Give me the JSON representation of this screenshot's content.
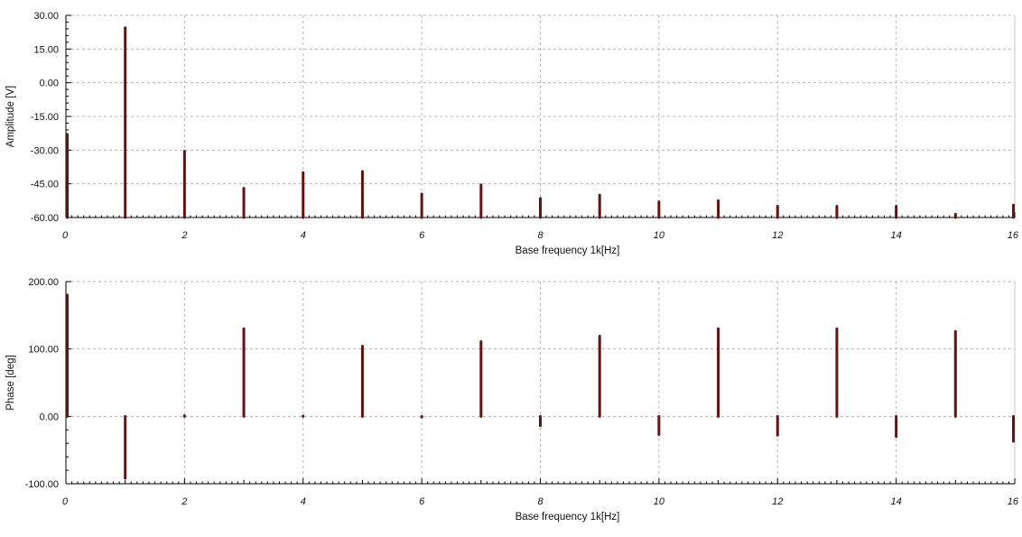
{
  "chart_data": [
    {
      "type": "bar",
      "xlabel": "Base frequency 1k[Hz]",
      "ylabel": "Amplitude [V]",
      "xlim": [
        0,
        16
      ],
      "ylim": [
        -60,
        30
      ],
      "x_ticks": [
        0,
        2,
        4,
        6,
        8,
        10,
        12,
        14,
        16
      ],
      "x_tick_labels": [
        "0",
        "2",
        "4",
        "6",
        "8",
        "10",
        "12",
        "14",
        "16"
      ],
      "y_ticks": [
        30,
        15,
        0,
        -15,
        -30,
        -45,
        -60
      ],
      "y_tick_labels": [
        "30.00",
        "15.00",
        "0.00",
        "-15.00",
        "-30.00",
        "-45.00",
        "-60.00"
      ],
      "grid": true,
      "bar_color": "#6b0f0f",
      "baseline": -60,
      "x": [
        0,
        1,
        2,
        3,
        4,
        5,
        6,
        7,
        8,
        9,
        10,
        11,
        12,
        13,
        14,
        15,
        16
      ],
      "values": [
        -23,
        24.5,
        -30.5,
        -47,
        -40,
        -39.5,
        -49.5,
        -45.5,
        -51.5,
        -50,
        -53,
        -52.5,
        -55,
        -55,
        -55,
        -58.5,
        -54.5
      ]
    },
    {
      "type": "bar",
      "xlabel": "Base frequency 1k[Hz]",
      "ylabel": "Phase [deg]",
      "xlim": [
        0,
        16
      ],
      "ylim": [
        -100,
        200
      ],
      "x_ticks": [
        0,
        2,
        4,
        6,
        8,
        10,
        12,
        14,
        16
      ],
      "x_tick_labels": [
        "0",
        "2",
        "4",
        "6",
        "8",
        "10",
        "12",
        "14",
        "16"
      ],
      "y_ticks": [
        200,
        100,
        0,
        -100
      ],
      "y_tick_labels": [
        "200.00",
        "100.00",
        "0.00",
        "-100.00"
      ],
      "grid": true,
      "bar_color": "#6b0f0f",
      "baseline": 0,
      "x": [
        0,
        1,
        2,
        3,
        4,
        5,
        6,
        7,
        8,
        9,
        10,
        11,
        12,
        13,
        14,
        15,
        16
      ],
      "values": [
        180,
        -92,
        1,
        130,
        0.5,
        104,
        -1,
        111,
        -14,
        119,
        -27,
        130,
        -28,
        130,
        -30,
        126,
        -37
      ]
    }
  ]
}
